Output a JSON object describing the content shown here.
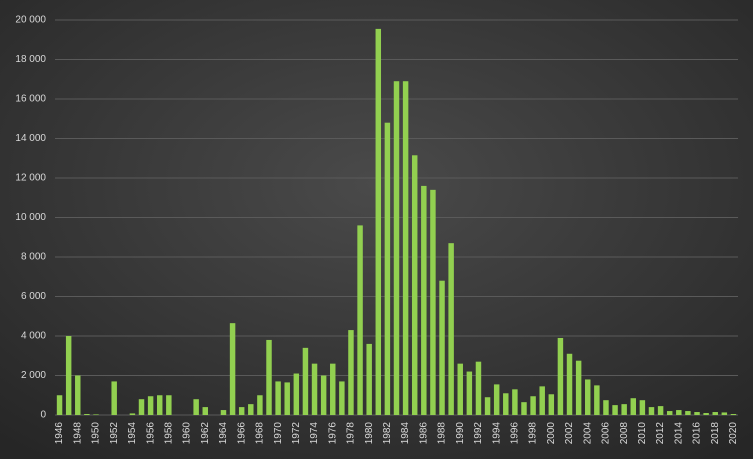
{
  "chart_data": {
    "type": "bar",
    "categories": [
      "1946",
      null,
      "1948",
      null,
      "1950",
      null,
      "1952",
      null,
      "1954",
      null,
      "1956",
      null,
      "1958",
      null,
      "1960",
      null,
      "1962",
      null,
      "1964",
      null,
      "1966",
      null,
      "1968",
      null,
      "1970",
      null,
      "1972",
      null,
      "1974",
      null,
      "1976",
      null,
      "1978",
      null,
      "1980",
      null,
      "1982",
      null,
      "1984",
      null,
      "1986",
      null,
      "1988",
      null,
      "1990",
      null,
      "1992",
      null,
      "1994",
      null,
      "1996",
      null,
      "1998",
      null,
      "2000",
      null,
      "2002",
      null,
      "2004",
      null,
      "2006",
      null,
      "2008",
      null,
      "2010",
      null,
      "2012",
      null,
      "2014",
      null,
      "2016",
      null,
      "2018",
      null,
      "2020"
    ],
    "values": [
      1000,
      4000,
      2000,
      50,
      30,
      0,
      1700,
      0,
      80,
      800,
      950,
      1000,
      1000,
      0,
      0,
      800,
      400,
      0,
      250,
      4650,
      400,
      550,
      1000,
      3800,
      1700,
      1650,
      2100,
      3400,
      2600,
      2000,
      2600,
      1700,
      4300,
      9600,
      3600,
      19550,
      14800,
      16900,
      16900,
      13150,
      11600,
      11400,
      6800,
      8700,
      2600,
      2200,
      2700,
      900,
      1550,
      1100,
      1300,
      650,
      950,
      1450,
      1050,
      3900,
      3100,
      2750,
      1800,
      1500,
      750,
      500,
      550,
      850,
      750,
      400,
      450,
      200,
      250,
      200,
      150,
      100,
      150,
      130,
      50
    ],
    "color": "#92d050",
    "ylim": [
      0,
      20000
    ],
    "yticks": [
      0,
      {
        "value": 2000,
        "label": "2 000"
      },
      {
        "value": 4000,
        "label": "4 000"
      },
      {
        "value": 6000,
        "label": "6 000"
      },
      {
        "value": 8000,
        "label": "8 000"
      },
      {
        "value": 10000,
        "label": "10 000"
      },
      {
        "value": 12000,
        "label": "12 000"
      },
      {
        "value": 14000,
        "label": "14 000"
      },
      {
        "value": 16000,
        "label": "16 000"
      },
      {
        "value": 18000,
        "label": "18 000"
      },
      {
        "value": 20000,
        "label": "20 000"
      }
    ],
    "grid": true
  }
}
